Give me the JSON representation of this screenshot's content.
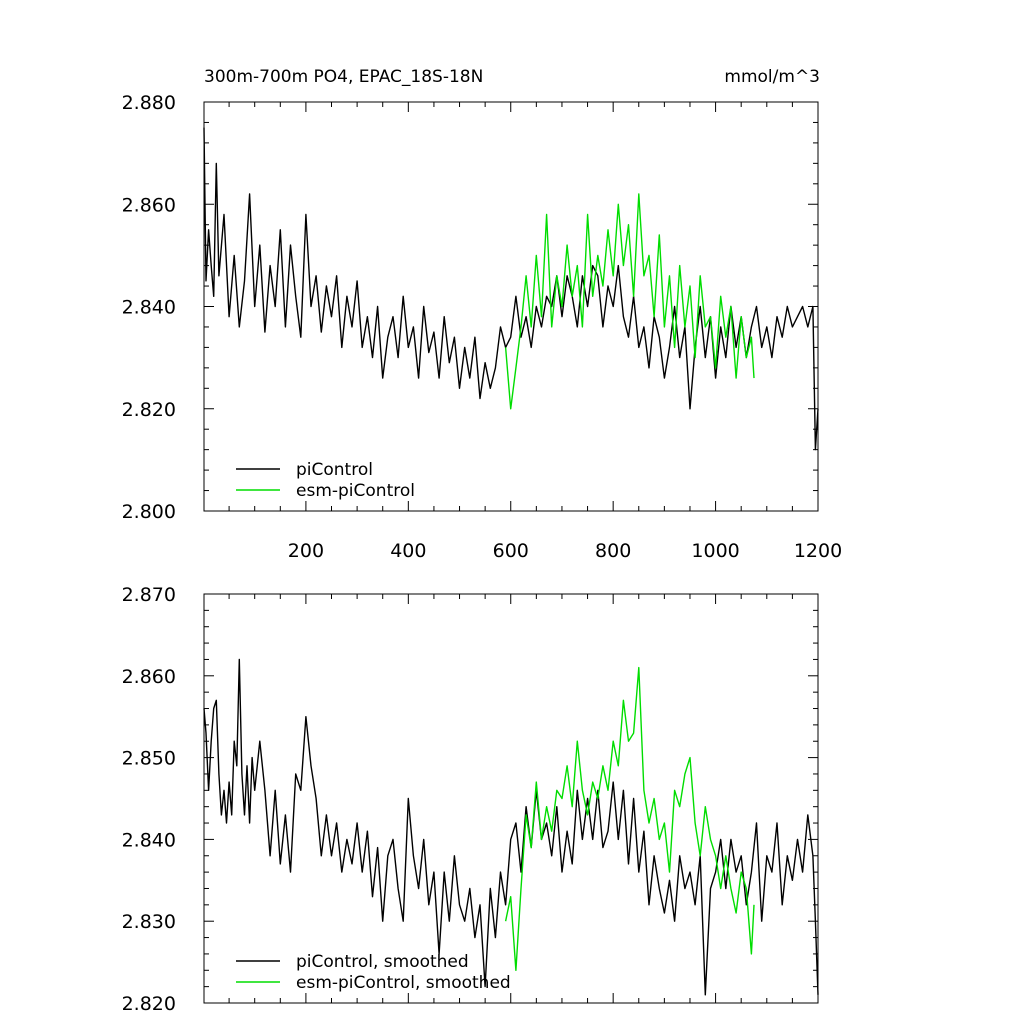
{
  "chart_data": [
    {
      "type": "line",
      "title": "300m-700m PO4, EPAC_18S-18N",
      "units": "mmol/m^3",
      "xlabel": "",
      "ylabel": "",
      "xlim": [
        1,
        1200
      ],
      "ylim": [
        2.8,
        2.88
      ],
      "xticks": [
        200,
        400,
        600,
        800,
        1000,
        1200
      ],
      "xtick_labels": [
        "200",
        "400",
        "600",
        "800",
        "1000",
        "1200"
      ],
      "yticks": [
        2.8,
        2.82,
        2.84,
        2.86,
        2.88
      ],
      "ytick_labels": [
        "2.800",
        "2.820",
        "2.840",
        "2.860",
        "2.880"
      ],
      "grid": false,
      "legend_position": "bottom-left",
      "series": [
        {
          "name": "piControl",
          "color": "#000000",
          "x": [
            1,
            5,
            10,
            15,
            20,
            25,
            30,
            40,
            50,
            60,
            70,
            80,
            90,
            100,
            110,
            120,
            130,
            140,
            150,
            160,
            170,
            180,
            190,
            200,
            210,
            220,
            230,
            240,
            250,
            260,
            270,
            280,
            290,
            300,
            310,
            320,
            330,
            340,
            350,
            360,
            370,
            380,
            390,
            400,
            410,
            420,
            430,
            440,
            450,
            460,
            470,
            480,
            490,
            500,
            510,
            520,
            530,
            540,
            550,
            560,
            570,
            580,
            590,
            600,
            610,
            620,
            630,
            640,
            650,
            660,
            670,
            680,
            690,
            700,
            710,
            720,
            730,
            740,
            750,
            760,
            770,
            780,
            790,
            800,
            810,
            820,
            830,
            840,
            850,
            860,
            870,
            880,
            890,
            900,
            910,
            920,
            930,
            940,
            950,
            960,
            970,
            980,
            990,
            1000,
            1010,
            1020,
            1030,
            1040,
            1050,
            1060,
            1070,
            1080,
            1090,
            1100,
            1110,
            1120,
            1130,
            1140,
            1150,
            1160,
            1170,
            1180,
            1190,
            1195,
            1200
          ],
          "y": [
            2.875,
            2.845,
            2.855,
            2.848,
            2.842,
            2.868,
            2.846,
            2.858,
            2.838,
            2.85,
            2.836,
            2.845,
            2.862,
            2.84,
            2.852,
            2.835,
            2.848,
            2.84,
            2.855,
            2.836,
            2.852,
            2.842,
            2.834,
            2.858,
            2.84,
            2.846,
            2.835,
            2.844,
            2.838,
            2.846,
            2.832,
            2.842,
            2.836,
            2.845,
            2.832,
            2.838,
            2.83,
            2.84,
            2.826,
            2.834,
            2.838,
            2.83,
            2.842,
            2.832,
            2.836,
            2.826,
            2.84,
            2.831,
            2.835,
            2.826,
            2.838,
            2.829,
            2.834,
            2.824,
            2.832,
            2.826,
            2.834,
            2.822,
            2.829,
            2.824,
            2.828,
            2.836,
            2.832,
            2.834,
            2.842,
            2.834,
            2.838,
            2.832,
            2.84,
            2.836,
            2.842,
            2.84,
            2.846,
            2.838,
            2.846,
            2.842,
            2.836,
            2.846,
            2.84,
            2.848,
            2.846,
            2.836,
            2.844,
            2.84,
            2.848,
            2.838,
            2.834,
            2.842,
            2.832,
            2.836,
            2.828,
            2.838,
            2.834,
            2.826,
            2.832,
            2.84,
            2.83,
            2.836,
            2.82,
            2.832,
            2.84,
            2.83,
            2.838,
            2.826,
            2.836,
            2.83,
            2.84,
            2.832,
            2.838,
            2.83,
            2.836,
            2.84,
            2.832,
            2.836,
            2.83,
            2.838,
            2.834,
            2.84,
            2.836,
            2.838,
            2.84,
            2.836,
            2.84,
            2.812,
            2.82
          ]
        },
        {
          "name": "esm-piControl",
          "color": "#00dd00",
          "x": [
            590,
            600,
            610,
            620,
            630,
            640,
            650,
            660,
            670,
            680,
            690,
            700,
            710,
            720,
            730,
            740,
            750,
            760,
            770,
            780,
            790,
            800,
            810,
            820,
            830,
            840,
            850,
            860,
            870,
            880,
            890,
            900,
            910,
            920,
            930,
            940,
            950,
            960,
            970,
            980,
            990,
            1000,
            1010,
            1020,
            1030,
            1040,
            1050,
            1060,
            1070,
            1075
          ],
          "y": [
            2.832,
            2.82,
            2.828,
            2.836,
            2.846,
            2.836,
            2.85,
            2.838,
            2.858,
            2.836,
            2.846,
            2.84,
            2.852,
            2.842,
            2.848,
            2.836,
            2.858,
            2.842,
            2.85,
            2.844,
            2.855,
            2.846,
            2.86,
            2.848,
            2.856,
            2.842,
            2.862,
            2.846,
            2.85,
            2.838,
            2.854,
            2.836,
            2.846,
            2.832,
            2.848,
            2.836,
            2.844,
            2.83,
            2.846,
            2.836,
            2.838,
            2.828,
            2.842,
            2.834,
            2.84,
            2.826,
            2.838,
            2.83,
            2.834,
            2.826
          ]
        }
      ]
    },
    {
      "type": "line",
      "title": "",
      "xlabel": "",
      "ylabel": "",
      "xlim": [
        1,
        1200
      ],
      "ylim": [
        2.82,
        2.87
      ],
      "yticks": [
        2.82,
        2.83,
        2.84,
        2.85,
        2.86,
        2.87
      ],
      "ytick_labels": [
        "2.820",
        "2.830",
        "2.840",
        "2.850",
        "2.860",
        "2.870"
      ],
      "grid": false,
      "legend_position": "bottom-left",
      "series": [
        {
          "name": "piControl, smoothed",
          "color": "#000000",
          "x": [
            1,
            5,
            10,
            15,
            20,
            25,
            30,
            35,
            40,
            45,
            50,
            55,
            60,
            65,
            70,
            75,
            80,
            85,
            90,
            95,
            100,
            110,
            120,
            130,
            140,
            150,
            160,
            170,
            180,
            190,
            200,
            210,
            220,
            230,
            240,
            250,
            260,
            270,
            280,
            290,
            300,
            310,
            320,
            330,
            340,
            350,
            360,
            370,
            380,
            390,
            400,
            410,
            420,
            430,
            440,
            450,
            460,
            470,
            480,
            490,
            500,
            510,
            520,
            530,
            540,
            550,
            560,
            570,
            580,
            590,
            600,
            610,
            620,
            630,
            640,
            650,
            660,
            670,
            680,
            690,
            700,
            710,
            720,
            730,
            740,
            750,
            760,
            770,
            780,
            790,
            800,
            810,
            820,
            830,
            840,
            850,
            860,
            870,
            880,
            890,
            900,
            910,
            920,
            930,
            940,
            950,
            960,
            970,
            980,
            990,
            1000,
            1010,
            1020,
            1030,
            1040,
            1050,
            1060,
            1070,
            1080,
            1090,
            1100,
            1110,
            1120,
            1130,
            1140,
            1150,
            1160,
            1170,
            1180,
            1190,
            1195,
            1200
          ],
          "y": [
            2.856,
            2.853,
            2.846,
            2.852,
            2.856,
            2.857,
            2.848,
            2.843,
            2.846,
            2.842,
            2.847,
            2.843,
            2.852,
            2.849,
            2.862,
            2.848,
            2.843,
            2.849,
            2.842,
            2.85,
            2.846,
            2.852,
            2.846,
            2.838,
            2.846,
            2.837,
            2.843,
            2.836,
            2.848,
            2.846,
            2.855,
            2.849,
            2.845,
            2.838,
            2.843,
            2.838,
            2.842,
            2.836,
            2.84,
            2.837,
            2.842,
            2.836,
            2.841,
            2.833,
            2.839,
            2.83,
            2.838,
            2.84,
            2.834,
            2.83,
            2.845,
            2.838,
            2.834,
            2.84,
            2.832,
            2.836,
            2.826,
            2.836,
            2.83,
            2.838,
            2.832,
            2.83,
            2.834,
            2.828,
            2.832,
            2.822,
            2.834,
            2.828,
            2.836,
            2.832,
            2.84,
            2.842,
            2.836,
            2.844,
            2.839,
            2.846,
            2.84,
            2.842,
            2.838,
            2.844,
            2.836,
            2.841,
            2.837,
            2.846,
            2.84,
            2.845,
            2.84,
            2.846,
            2.839,
            2.841,
            2.847,
            2.84,
            2.846,
            2.837,
            2.845,
            2.836,
            2.841,
            2.832,
            2.838,
            2.834,
            2.831,
            2.835,
            2.83,
            2.838,
            2.834,
            2.836,
            2.832,
            2.838,
            2.821,
            2.834,
            2.836,
            2.84,
            2.834,
            2.84,
            2.836,
            2.838,
            2.832,
            2.836,
            2.842,
            2.83,
            2.838,
            2.836,
            2.842,
            2.832,
            2.838,
            2.835,
            2.84,
            2.836,
            2.843,
            2.838,
            2.83,
            2.821
          ]
        },
        {
          "name": "esm-piControl, smoothed",
          "color": "#00dd00",
          "x": [
            590,
            600,
            610,
            620,
            630,
            640,
            650,
            660,
            670,
            680,
            690,
            700,
            710,
            720,
            730,
            740,
            750,
            760,
            770,
            780,
            790,
            800,
            810,
            820,
            830,
            840,
            850,
            860,
            870,
            880,
            890,
            900,
            910,
            920,
            930,
            940,
            950,
            960,
            970,
            980,
            990,
            1000,
            1010,
            1020,
            1030,
            1040,
            1050,
            1060,
            1070,
            1075
          ],
          "y": [
            2.83,
            2.833,
            2.824,
            2.834,
            2.843,
            2.839,
            2.847,
            2.84,
            2.844,
            2.841,
            2.846,
            2.845,
            2.849,
            2.844,
            2.852,
            2.846,
            2.843,
            2.847,
            2.845,
            2.849,
            2.846,
            2.852,
            2.849,
            2.857,
            2.852,
            2.853,
            2.861,
            2.846,
            2.842,
            2.845,
            2.84,
            2.842,
            2.836,
            2.846,
            2.844,
            2.848,
            2.85,
            2.842,
            2.838,
            2.844,
            2.84,
            2.838,
            2.834,
            2.838,
            2.834,
            2.831,
            2.836,
            2.834,
            2.826,
            2.832
          ]
        }
      ]
    }
  ]
}
